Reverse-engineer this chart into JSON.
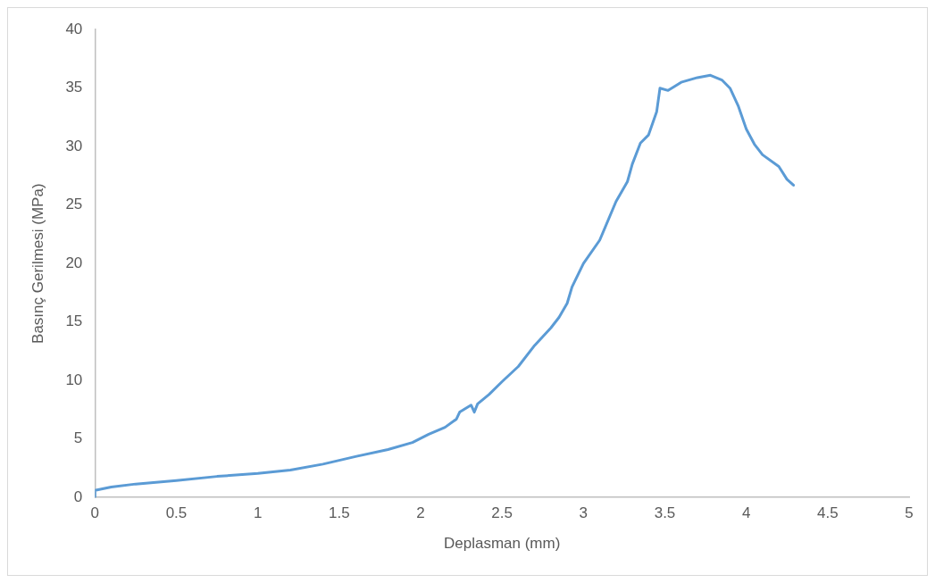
{
  "chart_data": {
    "type": "line",
    "xlabel": "Deplasman (mm)",
    "ylabel": "Basınç Gerilmesi (MPa)",
    "xlim": [
      0,
      5
    ],
    "xticks": [
      0,
      0.5,
      1,
      1.5,
      2,
      2.5,
      3,
      3.5,
      4,
      4.5,
      5
    ],
    "ylim": [
      0,
      40
    ],
    "yticks": [
      0,
      5,
      10,
      15,
      20,
      25,
      30,
      35,
      40
    ],
    "grid": false,
    "legend": false,
    "marker": "none",
    "line_style": "solid",
    "series": [
      {
        "color": "#5b9bd5",
        "x": [
          0,
          0,
          0.1,
          0.25,
          0.5,
          0.75,
          1.0,
          1.2,
          1.4,
          1.6,
          1.8,
          1.95,
          2.05,
          2.15,
          2.22,
          2.24,
          2.31,
          2.33,
          2.35,
          2.42,
          2.5,
          2.6,
          2.7,
          2.8,
          2.85,
          2.9,
          2.93,
          3.0,
          3.1,
          3.2,
          3.27,
          3.3,
          3.35,
          3.4,
          3.45,
          3.47,
          3.52,
          3.6,
          3.7,
          3.78,
          3.85,
          3.9,
          3.95,
          4.0,
          4.05,
          4.1,
          4.2,
          4.25,
          4.29
        ],
        "values": [
          0,
          0.6,
          0.9,
          1.15,
          1.45,
          1.8,
          2.05,
          2.35,
          2.85,
          3.5,
          4.1,
          4.7,
          5.4,
          6.0,
          6.7,
          7.3,
          7.9,
          7.3,
          8.0,
          8.8,
          9.9,
          11.2,
          13.0,
          14.5,
          15.4,
          16.6,
          18.0,
          20.0,
          22.0,
          25.3,
          27.0,
          28.5,
          30.3,
          31.0,
          33.0,
          35.0,
          34.8,
          35.5,
          35.9,
          36.1,
          35.7,
          35.0,
          33.5,
          31.5,
          30.2,
          29.3,
          28.3,
          27.2,
          26.7
        ]
      }
    ]
  }
}
